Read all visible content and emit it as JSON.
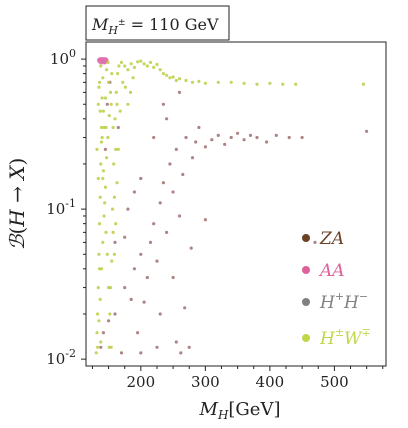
{
  "chart_data": {
    "type": "scatter",
    "title_box": "M_{H^±} = 110 GeV",
    "xlabel": "M_H [GeV]",
    "ylabel": "ℬ(H → X)",
    "x_scale": "linear",
    "y_scale": "log",
    "xlim": [
      115,
      580
    ],
    "ylim": [
      0.009,
      1.3
    ],
    "x_ticks": [
      200,
      300,
      400,
      500
    ],
    "y_ticks": [
      {
        "value": 1,
        "label": "10^0"
      },
      {
        "value": 0.1,
        "label": "10^-1"
      },
      {
        "value": 0.01,
        "label": "10^-2"
      }
    ],
    "grid": false,
    "legend_position": "center-right",
    "series": [
      {
        "name": "ZA",
        "color": "#6b4226",
        "point_color": "#a07070",
        "points": [
          [
            138,
            0.012
          ],
          [
            142,
            0.015
          ],
          [
            150,
            0.018
          ],
          [
            160,
            0.02
          ],
          [
            170,
            0.011
          ],
          [
            175,
            0.03
          ],
          [
            185,
            0.025
          ],
          [
            190,
            0.04
          ],
          [
            200,
            0.05
          ],
          [
            210,
            0.035
          ],
          [
            215,
            0.06
          ],
          [
            220,
            0.08
          ],
          [
            225,
            0.045
          ],
          [
            230,
            0.11
          ],
          [
            235,
            0.15
          ],
          [
            240,
            0.07
          ],
          [
            245,
            0.2
          ],
          [
            250,
            0.13
          ],
          [
            255,
            0.25
          ],
          [
            260,
            0.09
          ],
          [
            265,
            0.17
          ],
          [
            268,
            0.022
          ],
          [
            270,
            0.3
          ],
          [
            275,
            0.012
          ],
          [
            280,
            0.22
          ],
          [
            285,
            0.28
          ],
          [
            290,
            0.35
          ],
          [
            300,
            0.26
          ],
          [
            310,
            0.29
          ],
          [
            320,
            0.31
          ],
          [
            330,
            0.27
          ],
          [
            340,
            0.3
          ],
          [
            350,
            0.32
          ],
          [
            360,
            0.29
          ],
          [
            370,
            0.31
          ],
          [
            380,
            0.3
          ],
          [
            395,
            0.28
          ],
          [
            410,
            0.31
          ],
          [
            430,
            0.3
          ],
          [
            450,
            0.3
          ],
          [
            470,
            0.06
          ],
          [
            550,
            0.33
          ],
          [
            160,
            0.06
          ],
          [
            180,
            0.1
          ],
          [
            200,
            0.16
          ],
          [
            205,
            0.024
          ],
          [
            220,
            0.3
          ],
          [
            240,
            0.4
          ],
          [
            255,
            0.013
          ],
          [
            262,
            0.011
          ],
          [
            145,
            0.25
          ],
          [
            148,
            0.5
          ],
          [
            152,
            0.7
          ],
          [
            165,
            0.35
          ],
          [
            195,
            0.015
          ],
          [
            230,
            0.02
          ],
          [
            250,
            0.035
          ],
          [
            278,
            0.055
          ],
          [
            300,
            0.085
          ],
          [
            235,
            0.5
          ],
          [
            260,
            0.6
          ],
          [
            225,
            0.012
          ],
          [
            200,
            0.011
          ],
          [
            175,
            0.065
          ],
          [
            190,
            0.13
          ]
        ]
      },
      {
        "name": "AA",
        "color": "#e0609a",
        "point_color": "#e070b0",
        "points": [
          [
            136,
            0.98
          ],
          [
            137,
            0.99
          ],
          [
            138,
            0.98
          ],
          [
            139,
            0.99
          ],
          [
            140,
            0.98
          ],
          [
            141,
            0.99
          ],
          [
            142,
            0.98
          ],
          [
            143,
            0.99
          ],
          [
            144,
            0.98
          ],
          [
            145,
            0.99
          ],
          [
            146,
            0.98
          ],
          [
            138,
            0.96
          ],
          [
            142,
            0.96
          ],
          [
            144,
            0.96
          ]
        ]
      },
      {
        "name": "H^+H^-",
        "color": "#808080",
        "point_color": "#808080",
        "points": []
      },
      {
        "name": "H^±W^∓",
        "color": "#c2d64a",
        "point_color": "#bccc44",
        "points": [
          [
            131,
            0.011
          ],
          [
            132,
            0.015
          ],
          [
            133,
            0.02
          ],
          [
            134,
            0.03
          ],
          [
            135,
            0.05
          ],
          [
            136,
            0.08
          ],
          [
            137,
            0.12
          ],
          [
            138,
            0.2
          ],
          [
            139,
            0.35
          ],
          [
            140,
            0.55
          ],
          [
            141,
            0.75
          ],
          [
            133,
            0.012
          ],
          [
            135,
            0.018
          ],
          [
            137,
            0.025
          ],
          [
            139,
            0.04
          ],
          [
            141,
            0.06
          ],
          [
            143,
            0.09
          ],
          [
            145,
            0.14
          ],
          [
            147,
            0.22
          ],
          [
            149,
            0.3
          ],
          [
            151,
            0.42
          ],
          [
            153,
            0.6
          ],
          [
            155,
            0.8
          ],
          [
            134,
            0.5
          ],
          [
            136,
            0.7
          ],
          [
            138,
            0.9
          ],
          [
            140,
            0.3
          ],
          [
            142,
            0.18
          ],
          [
            144,
            0.11
          ],
          [
            146,
            0.07
          ],
          [
            148,
            0.05
          ],
          [
            150,
            0.03
          ],
          [
            152,
            0.02
          ],
          [
            154,
            0.012
          ],
          [
            156,
            0.1
          ],
          [
            158,
            0.2
          ],
          [
            160,
            0.4
          ],
          [
            162,
            0.6
          ],
          [
            164,
            0.8
          ],
          [
            166,
            0.9
          ],
          [
            170,
            0.95
          ],
          [
            175,
            0.9
          ],
          [
            180,
            0.85
          ],
          [
            185,
            0.93
          ],
          [
            190,
            0.88
          ],
          [
            195,
            0.96
          ],
          [
            200,
            0.97
          ],
          [
            205,
            0.93
          ],
          [
            210,
            0.9
          ],
          [
            215,
            0.95
          ],
          [
            220,
            0.88
          ],
          [
            225,
            0.92
          ],
          [
            230,
            0.85
          ],
          [
            235,
            0.8
          ],
          [
            240,
            0.78
          ],
          [
            245,
            0.75
          ],
          [
            250,
            0.76
          ],
          [
            255,
            0.72
          ],
          [
            260,
            0.74
          ],
          [
            270,
            0.72
          ],
          [
            280,
            0.7
          ],
          [
            290,
            0.71
          ],
          [
            300,
            0.69
          ],
          [
            320,
            0.7
          ],
          [
            340,
            0.7
          ],
          [
            360,
            0.69
          ],
          [
            380,
            0.68
          ],
          [
            400,
            0.69
          ],
          [
            420,
            0.68
          ],
          [
            440,
            0.68
          ],
          [
            545,
            0.68
          ],
          [
            132,
            0.25
          ],
          [
            134,
            0.16
          ],
          [
            136,
            0.04
          ],
          [
            138,
            0.013
          ],
          [
            142,
            0.45
          ],
          [
            146,
            0.35
          ],
          [
            150,
            0.7
          ],
          [
            154,
            0.5
          ],
          [
            157,
            0.35
          ],
          [
            159,
            0.05
          ],
          [
            161,
            0.08
          ],
          [
            163,
            0.15
          ],
          [
            165,
            0.25
          ],
          [
            168,
            0.45
          ],
          [
            172,
            0.7
          ],
          [
            176,
            0.65
          ],
          [
            180,
            0.5
          ],
          [
            184,
            0.6
          ],
          [
            188,
            0.75
          ],
          [
            135,
            0.65
          ],
          [
            137,
            0.45
          ],
          [
            139,
            0.28
          ],
          [
            141,
            0.16
          ],
          [
            143,
            0.35
          ],
          [
            145,
            0.55
          ],
          [
            147,
            0.85
          ],
          [
            149,
            0.95
          ],
          [
            151,
            0.012
          ],
          [
            153,
            0.03
          ],
          [
            155,
            0.045
          ],
          [
            157,
            0.07
          ],
          [
            159,
            0.12
          ],
          [
            161,
            0.25
          ],
          [
            163,
            0.5
          ]
        ]
      }
    ]
  }
}
